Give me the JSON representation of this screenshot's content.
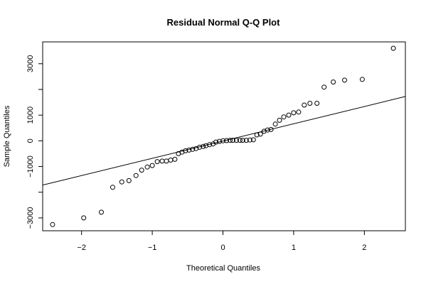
{
  "chart_data": {
    "type": "scatter",
    "title": "Residual Normal Q-Q Plot",
    "xlabel": "Theoretical Quantiles",
    "ylabel": "Sample Quantiles",
    "xlim": [
      -2.55,
      2.58
    ],
    "ylim": [
      -3500,
      3850
    ],
    "x_ticks": [
      -2,
      -1,
      0,
      1,
      2
    ],
    "x_tick_labels": [
      "−2",
      "−1",
      "0",
      "1",
      "2"
    ],
    "y_ticks": [
      -3000,
      -1000,
      0,
      1000,
      3000
    ],
    "y_tick_labels": [
      "−3000",
      "−1000",
      "0",
      "1000",
      "3000"
    ],
    "y_minor_ticks": [
      -2000,
      2000
    ],
    "grid": false,
    "reference_line": {
      "slope": 672,
      "intercept": -9
    },
    "points": [
      {
        "x": -2.41,
        "y": -3260
      },
      {
        "x": -1.97,
        "y": -3000
      },
      {
        "x": -1.72,
        "y": -2780
      },
      {
        "x": -1.56,
        "y": -1810
      },
      {
        "x": -1.43,
        "y": -1600
      },
      {
        "x": -1.33,
        "y": -1550
      },
      {
        "x": -1.23,
        "y": -1350
      },
      {
        "x": -1.15,
        "y": -1140
      },
      {
        "x": -1.07,
        "y": -1020
      },
      {
        "x": -1.0,
        "y": -960
      },
      {
        "x": -0.93,
        "y": -810
      },
      {
        "x": -0.86,
        "y": -790
      },
      {
        "x": -0.8,
        "y": -790
      },
      {
        "x": -0.74,
        "y": -750
      },
      {
        "x": -0.68,
        "y": -720
      },
      {
        "x": -0.63,
        "y": -500
      },
      {
        "x": -0.58,
        "y": -440
      },
      {
        "x": -0.53,
        "y": -390
      },
      {
        "x": -0.48,
        "y": -360
      },
      {
        "x": -0.43,
        "y": -330
      },
      {
        "x": -0.38,
        "y": -300
      },
      {
        "x": -0.33,
        "y": -250
      },
      {
        "x": -0.28,
        "y": -220
      },
      {
        "x": -0.24,
        "y": -190
      },
      {
        "x": -0.19,
        "y": -150
      },
      {
        "x": -0.14,
        "y": -120
      },
      {
        "x": -0.1,
        "y": -50
      },
      {
        "x": -0.05,
        "y": -20
      },
      {
        "x": 0.0,
        "y": 0
      },
      {
        "x": 0.05,
        "y": 10
      },
      {
        "x": 0.1,
        "y": 20
      },
      {
        "x": 0.14,
        "y": 20
      },
      {
        "x": 0.19,
        "y": 20
      },
      {
        "x": 0.24,
        "y": 20
      },
      {
        "x": 0.28,
        "y": 20
      },
      {
        "x": 0.33,
        "y": 20
      },
      {
        "x": 0.38,
        "y": 30
      },
      {
        "x": 0.43,
        "y": 40
      },
      {
        "x": 0.48,
        "y": 230
      },
      {
        "x": 0.53,
        "y": 260
      },
      {
        "x": 0.58,
        "y": 370
      },
      {
        "x": 0.63,
        "y": 420
      },
      {
        "x": 0.68,
        "y": 440
      },
      {
        "x": 0.74,
        "y": 650
      },
      {
        "x": 0.8,
        "y": 800
      },
      {
        "x": 0.86,
        "y": 930
      },
      {
        "x": 0.93,
        "y": 1000
      },
      {
        "x": 1.0,
        "y": 1090
      },
      {
        "x": 1.07,
        "y": 1120
      },
      {
        "x": 1.15,
        "y": 1390
      },
      {
        "x": 1.23,
        "y": 1460
      },
      {
        "x": 1.33,
        "y": 1460
      },
      {
        "x": 1.43,
        "y": 2090
      },
      {
        "x": 1.56,
        "y": 2290
      },
      {
        "x": 1.72,
        "y": 2360
      },
      {
        "x": 1.97,
        "y": 2390
      },
      {
        "x": 2.41,
        "y": 3600
      }
    ]
  }
}
